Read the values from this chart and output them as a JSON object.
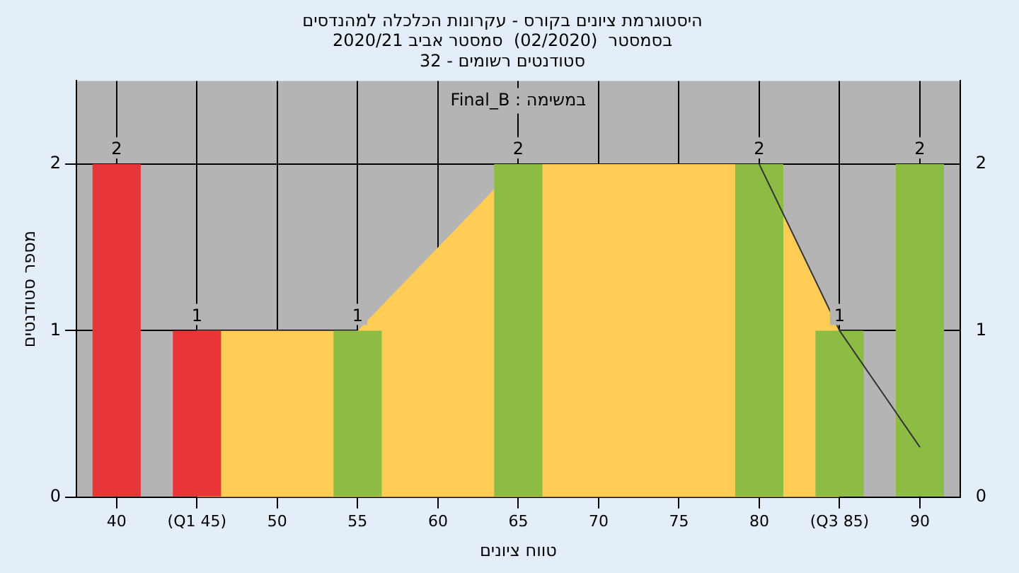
{
  "chart_data": {
    "type": "bar",
    "title": [
      "היסטוגרמת ציונים בקורס - עקרונות הכלכלה למהנדסים",
      "בסמסטר  (02/2020)  סמסטר אביב 2020/21",
      "סטודנטים רשומים - 32"
    ],
    "xlabel": "טווח ציונים",
    "ylabel": "מספר סטודנטים",
    "annotations": [
      "במשימה : Final_B"
    ],
    "categories": [
      "40",
      "(Q1 45)",
      "50",
      "55",
      "60",
      "65",
      "70",
      "75",
      "80",
      "(Q3 85)",
      "90"
    ],
    "series": [
      {
        "type": "area",
        "color": "#ffcc55",
        "values": [
          null,
          1,
          1,
          1,
          1.5,
          2,
          2,
          2,
          2,
          1,
          null
        ]
      },
      {
        "type": "line",
        "color": "#333333",
        "values": [
          null,
          null,
          null,
          null,
          null,
          null,
          null,
          null,
          2,
          1,
          0.3
        ]
      },
      {
        "type": "bar",
        "colors": [
          "#e83535",
          "#e83535",
          null,
          "#8cbc44",
          null,
          "#8cbc44",
          null,
          null,
          "#8cbc44",
          "#8cbc44",
          "#8cbc44"
        ],
        "values": [
          2,
          1,
          null,
          1,
          null,
          2,
          null,
          null,
          2,
          1,
          2
        ],
        "data_labels": true
      }
    ],
    "ylim": [
      0,
      2.5
    ],
    "yticks": [
      0,
      1,
      2
    ],
    "y2lim": [
      0,
      2.5
    ],
    "y2ticks": [
      0,
      1,
      2
    ],
    "grid": true,
    "legend": false
  }
}
